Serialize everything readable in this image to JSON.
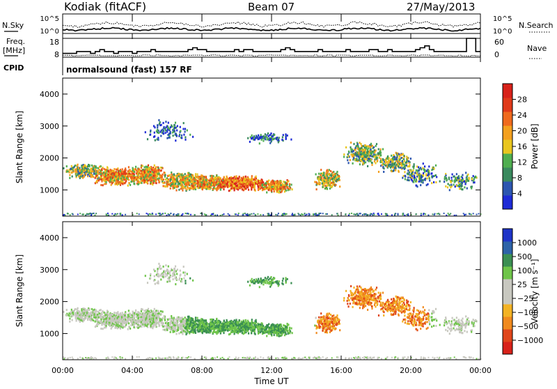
{
  "header": {
    "station": "Kodiak (fitACF)",
    "beam": "Beam 07",
    "date": "27/May/2013"
  },
  "top_panels": {
    "nsky_label": "N.Sky",
    "nsearch_label": "N.Search",
    "freq_label_line1": "Freq.",
    "freq_label_line2": "[MHz]",
    "nave_label": "Nave",
    "cpid_label": "CPID",
    "cpid_value": "normalsound (fast) 157 RF",
    "noise_ticks": [
      "10^5",
      "10^0"
    ],
    "noise_right_ticks": [
      "10^5",
      "10^0"
    ],
    "freq_ticks": [
      "18",
      "8"
    ],
    "nave_ticks": [
      "60",
      "0"
    ]
  },
  "x_axis": {
    "label": "Time UT",
    "ticks": [
      "00:00",
      "04:00",
      "08:00",
      "12:00",
      "16:00",
      "20:00",
      "00:00"
    ]
  },
  "colors": {
    "power": [
      "#1e2bd6",
      "#2c56b0",
      "#3a8a5e",
      "#4fae50",
      "#e9c61f",
      "#f3a01f",
      "#ef6a1e",
      "#e03a1a",
      "#d8221a"
    ],
    "velocity": [
      "#d8221a",
      "#e0461b",
      "#f08a1e",
      "#f3b324",
      "#c8c8c0",
      "#c8c8c0",
      "#6fc54a",
      "#3b8f53",
      "#2d63a8",
      "#1f34c8"
    ]
  },
  "chart_data": [
    {
      "type": "heatmap",
      "panel": "power",
      "ylabel": "Slant Range [km]",
      "yticks": [
        "1000",
        "2000",
        "3000",
        "4000"
      ],
      "ylim": [
        180,
        4500
      ],
      "xlim": [
        "00:00",
        "24:00"
      ],
      "colorbar_label": "Power [dB]",
      "colorbar_ticks": [
        "4",
        "8",
        "12",
        "16",
        "20",
        "24",
        "28"
      ],
      "colorbar_range": [
        0,
        30
      ]
    },
    {
      "type": "heatmap",
      "panel": "velocity",
      "ylabel": "Slant Range [km]",
      "yticks": [
        "1000",
        "2000",
        "3000",
        "4000"
      ],
      "ylim": [
        180,
        4500
      ],
      "xlim": [
        "00:00",
        "24:00"
      ],
      "colorbar_label": "Velocity [m s⁻¹]",
      "colorbar_ticks": [
        "1000",
        "500",
        "100",
        "25",
        "−25",
        "−100",
        "−500",
        "−1000"
      ]
    }
  ]
}
